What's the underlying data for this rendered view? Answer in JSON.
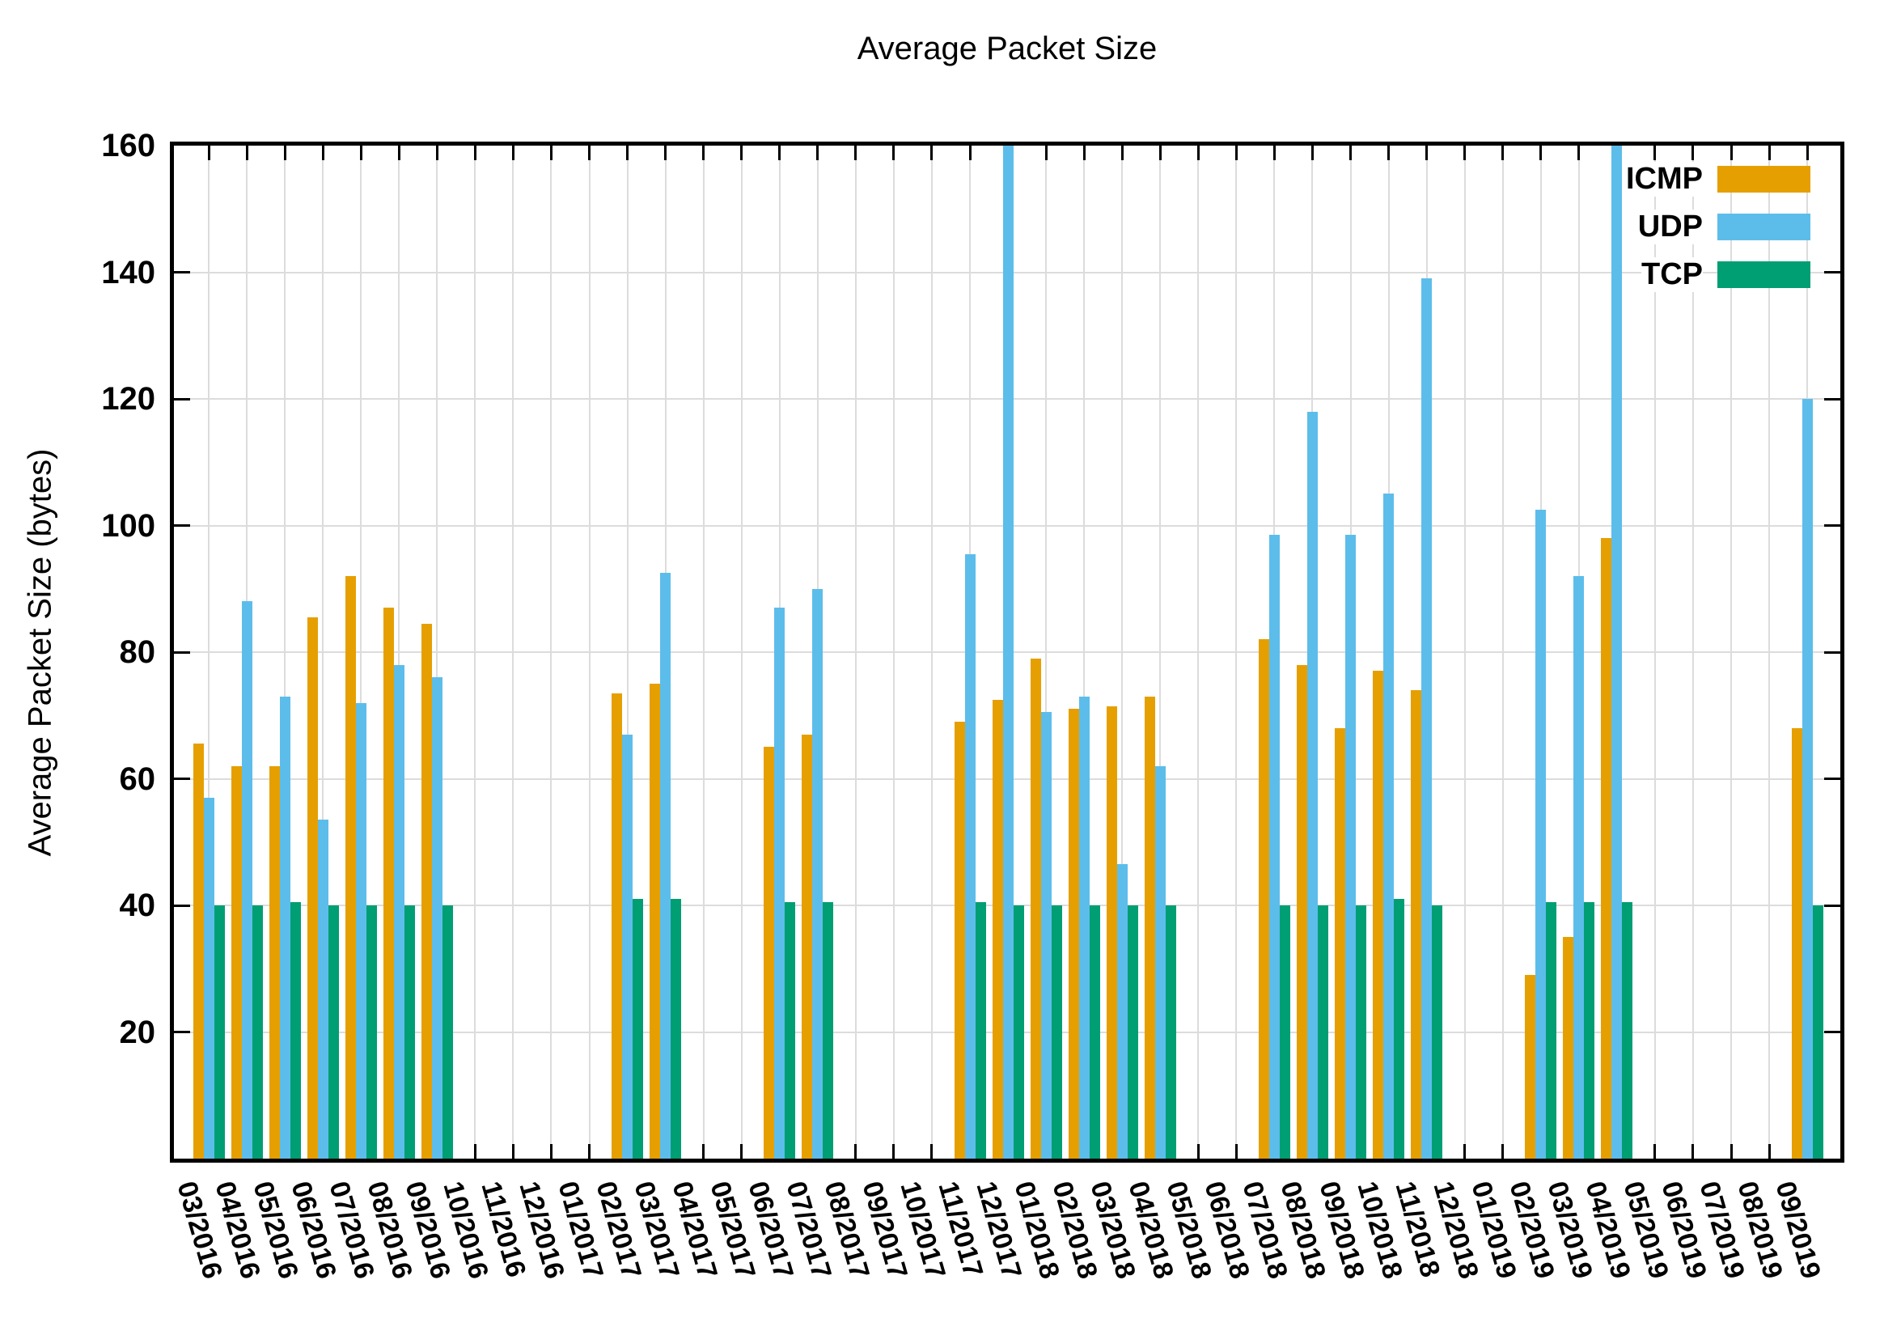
{
  "chart_data": {
    "type": "bar",
    "title": "Average Packet Size",
    "xlabel": "",
    "ylabel": "Average Packet Size (bytes)",
    "ylim": [
      0,
      160
    ],
    "yticks": [
      20,
      40,
      60,
      80,
      100,
      120,
      140,
      160
    ],
    "grid": true,
    "legend_position": "top-right-inside",
    "categories": [
      "03/2016",
      "04/2016",
      "05/2016",
      "06/2016",
      "07/2016",
      "08/2016",
      "09/2016",
      "10/2016",
      "11/2016",
      "12/2016",
      "01/2017",
      "02/2017",
      "03/2017",
      "04/2017",
      "05/2017",
      "06/2017",
      "07/2017",
      "08/2017",
      "09/2017",
      "10/2017",
      "11/2017",
      "12/2017",
      "01/2018",
      "02/2018",
      "03/2018",
      "04/2018",
      "05/2018",
      "06/2018",
      "07/2018",
      "08/2018",
      "09/2018",
      "10/2018",
      "11/2018",
      "12/2018",
      "01/2019",
      "02/2019",
      "03/2019",
      "04/2019",
      "05/2019",
      "06/2019",
      "07/2019",
      "08/2019",
      "09/2019"
    ],
    "series": [
      {
        "name": "ICMP",
        "color": "#E69F00",
        "values": [
          65.5,
          62,
          62,
          85.5,
          92,
          87,
          84.5,
          null,
          null,
          null,
          null,
          73.5,
          75,
          null,
          null,
          65,
          67,
          null,
          null,
          null,
          69,
          72.5,
          79,
          71,
          71.5,
          73,
          null,
          null,
          82,
          78,
          68,
          77,
          74,
          null,
          null,
          29,
          35,
          98,
          null,
          null,
          null,
          null,
          68
        ]
      },
      {
        "name": "UDP",
        "color": "#5CBDEB",
        "values": [
          57,
          88,
          73,
          53.5,
          72,
          78,
          76,
          null,
          null,
          null,
          null,
          67,
          92.5,
          null,
          null,
          87,
          90,
          null,
          null,
          null,
          95.5,
          160,
          70.5,
          73,
          46.5,
          62,
          null,
          null,
          98.5,
          118,
          98.5,
          105,
          139,
          null,
          null,
          102.5,
          92,
          160,
          null,
          null,
          null,
          null,
          120
        ]
      },
      {
        "name": "TCP",
        "color": "#009E73",
        "values": [
          40,
          40,
          40.5,
          40,
          40,
          40,
          40,
          null,
          null,
          null,
          null,
          41,
          41,
          null,
          null,
          40.5,
          40.5,
          null,
          null,
          null,
          40.5,
          40,
          40,
          40,
          40,
          40,
          null,
          null,
          40,
          40,
          40,
          41,
          40,
          null,
          null,
          40.5,
          40.5,
          40.5,
          null,
          null,
          null,
          null,
          40
        ]
      }
    ],
    "clipped_bars": [
      {
        "series": "UDP",
        "category": "12/2017",
        "note": "bar exceeds y-axis max, clipped at 160"
      },
      {
        "series": "UDP",
        "category": "04/2019",
        "note": "bar exceeds y-axis max, clipped at 160"
      }
    ],
    "colors": {
      "grid": "#dcdcdc",
      "axis": "#000000",
      "background": "#ffffff"
    }
  }
}
